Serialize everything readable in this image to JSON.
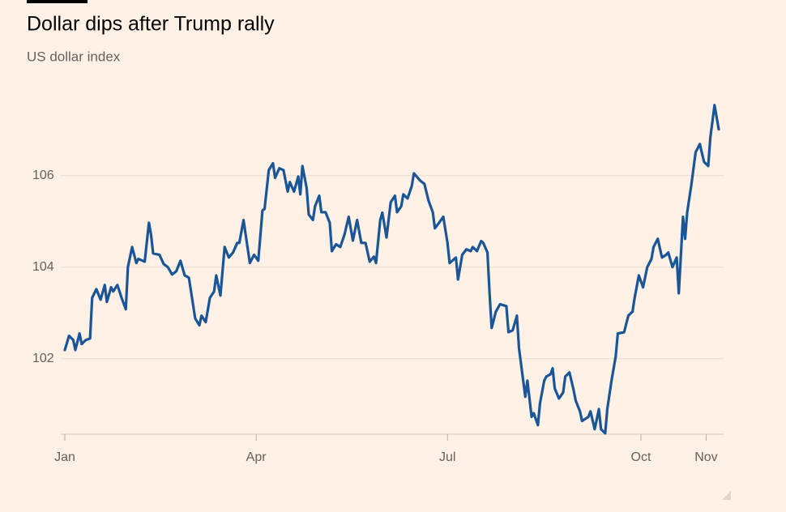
{
  "chart_data": {
    "type": "line",
    "title": "Dollar dips after Trump rally",
    "subtitle": "US dollar index",
    "x": [
      0,
      2,
      4,
      5,
      7,
      8,
      10,
      12,
      13,
      15,
      17,
      19,
      20,
      22,
      23,
      25,
      27,
      29,
      30,
      32,
      34,
      35,
      38,
      40,
      41,
      42,
      45,
      47,
      49,
      51,
      53,
      55,
      57,
      59,
      62,
      64,
      65,
      67,
      69,
      71,
      72,
      74,
      76,
      78,
      80,
      82,
      83,
      85,
      86,
      88,
      90,
      92,
      94,
      95,
      97,
      99,
      100,
      102,
      104,
      106,
      107,
      109,
      111,
      112,
      113,
      115,
      116,
      118,
      119,
      121,
      122,
      124,
      126,
      127,
      129,
      131,
      133,
      135,
      137,
      139,
      141,
      143,
      145,
      147,
      148,
      150,
      151,
      153,
      155,
      157,
      158,
      160,
      161,
      163,
      165,
      166,
      169,
      171,
      173,
      175,
      176,
      178,
      180,
      182,
      183,
      186,
      187,
      189,
      191,
      193,
      194,
      196,
      198,
      199,
      201,
      202,
      203,
      205,
      207,
      210,
      211,
      213,
      215,
      216,
      218,
      219,
      220,
      222,
      223,
      225,
      226,
      228,
      229,
      231,
      232,
      233,
      235,
      237,
      238,
      240,
      242,
      243,
      245,
      246,
      249,
      250,
      252,
      254,
      255,
      257,
      258,
      260,
      262,
      263,
      266,
      268,
      270,
      271,
      273,
      275,
      277,
      279,
      280,
      282,
      284,
      286,
      287,
      289,
      291,
      292,
      294,
      295,
      296,
      298,
      300,
      302,
      304,
      306,
      307,
      309,
      311
    ],
    "values": [
      102.19,
      102.5,
      102.41,
      102.19,
      102.55,
      102.32,
      102.41,
      102.44,
      103.33,
      103.52,
      103.29,
      103.61,
      103.24,
      103.56,
      103.47,
      103.61,
      103.33,
      103.08,
      104,
      104.44,
      104.09,
      104.18,
      104.12,
      104.97,
      104.71,
      104.3,
      104.27,
      104.07,
      104,
      103.84,
      103.91,
      104.14,
      103.82,
      103.77,
      102.88,
      102.73,
      102.94,
      102.8,
      103.33,
      103.47,
      103.82,
      103.38,
      104.44,
      104.21,
      104.32,
      104.53,
      104.53,
      105.03,
      104.71,
      104.09,
      104.27,
      104.14,
      105.24,
      105.27,
      106.12,
      106.27,
      105.95,
      106.16,
      106.12,
      105.65,
      105.86,
      105.65,
      105.98,
      105.59,
      106.21,
      105.73,
      105.15,
      105.03,
      105.33,
      105.56,
      105.2,
      105.2,
      104.97,
      104.35,
      104.5,
      104.44,
      104.71,
      105.1,
      104.58,
      105.03,
      104.53,
      104.53,
      104.12,
      104.23,
      104.09,
      105.03,
      105.19,
      104.65,
      105.42,
      105.56,
      105.2,
      105.33,
      105.59,
      105.5,
      105.77,
      106.05,
      105.89,
      105.82,
      105.45,
      105.2,
      104.85,
      104.97,
      105.1,
      104.53,
      104.09,
      104.21,
      103.73,
      104.27,
      104.39,
      104.35,
      104.44,
      104.35,
      104.57,
      104.53,
      104.32,
      103.43,
      102.67,
      103.03,
      103.19,
      103.15,
      102.58,
      102.62,
      102.94,
      102.23,
      101.52,
      101.17,
      101.52,
      100.73,
      100.81,
      100.55,
      101.03,
      101.52,
      101.61,
      101.66,
      101.79,
      101.35,
      101.13,
      101.26,
      101.61,
      101.7,
      101.31,
      101.08,
      100.85,
      100.64,
      100.73,
      100.85,
      100.46,
      100.9,
      100.46,
      100.37,
      100.9,
      101.52,
      102.05,
      102.55,
      102.58,
      102.94,
      103.03,
      103.33,
      103.82,
      103.56,
      104,
      104.18,
      104.44,
      104.62,
      104.21,
      104.27,
      104.32,
      104,
      104.21,
      103.43,
      105.1,
      104.62,
      105.2,
      105.81,
      106.51,
      106.69,
      106.3,
      106.21,
      106.83,
      107.54,
      107.01
    ],
    "color": "#1a5598",
    "xlim": [
      0,
      311
    ],
    "xticks": [
      {
        "value": 0,
        "label": "Jan"
      },
      {
        "value": 91,
        "label": "Apr"
      },
      {
        "value": 182,
        "label": "Jul"
      },
      {
        "value": 274,
        "label": "Oct"
      },
      {
        "value": 305,
        "label": "Nov"
      }
    ],
    "ylim": [
      100.35,
      107.9
    ],
    "yticks": [
      102,
      104,
      106
    ],
    "grid": true
  }
}
